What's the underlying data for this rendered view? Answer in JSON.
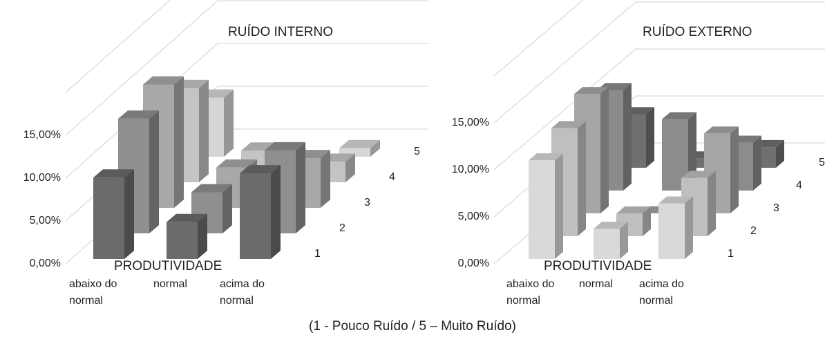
{
  "chart_data": [
    {
      "type": "bar3d",
      "title": "RUÍDO INTERNO",
      "x_label": "PRODUTIVIDADE",
      "categories": [
        "abaixo do normal",
        "normal",
        "acima do normal"
      ],
      "series": [
        {
          "name": "1",
          "color": "#6b6b6b",
          "values": [
            9.5,
            4.3,
            10.0
          ]
        },
        {
          "name": "2",
          "color": "#8f8f8f",
          "values": [
            13.4,
            4.8,
            9.7
          ]
        },
        {
          "name": "3",
          "color": "#a8a8a8",
          "values": [
            14.4,
            4.7,
            5.8
          ]
        },
        {
          "name": "4",
          "color": "#c4c4c4",
          "values": [
            11.0,
            3.7,
            2.4
          ]
        },
        {
          "name": "5",
          "color": "#d6d6d6",
          "values": [
            6.9,
            0,
            1.0
          ]
        }
      ],
      "ylim": [
        0,
        20
      ],
      "yticks": [
        {
          "value": 0,
          "label": "0,00%"
        },
        {
          "value": 5,
          "label": "5,00%"
        },
        {
          "value": 10,
          "label": "10,00%"
        },
        {
          "value": 15,
          "label": "15,00%"
        }
      ],
      "grid": true
    },
    {
      "type": "bar3d",
      "title": "RUÍDO EXTERNO",
      "x_label": "PRODUTIVIDADE",
      "categories": [
        "abaixo do normal",
        "normal",
        "acima do normal"
      ],
      "series": [
        {
          "name": "1",
          "color": "#d9d9d9",
          "values": [
            10.5,
            3.2,
            5.9
          ]
        },
        {
          "name": "2",
          "color": "#bfbfbf",
          "values": [
            11.5,
            2.4,
            6.2
          ]
        },
        {
          "name": "3",
          "color": "#a6a6a6",
          "values": [
            12.7,
            0,
            8.5
          ]
        },
        {
          "name": "4",
          "color": "#8c8c8c",
          "values": [
            10.7,
            7.6,
            5.1
          ]
        },
        {
          "name": "5",
          "color": "#707070",
          "values": [
            5.7,
            1.0,
            2.2
          ]
        }
      ],
      "ylim": [
        0,
        20
      ],
      "yticks": [
        {
          "value": 0,
          "label": "0,00%"
        },
        {
          "value": 5,
          "label": "5,00%"
        },
        {
          "value": 10,
          "label": "10,00%"
        },
        {
          "value": 15,
          "label": "15,00%"
        }
      ],
      "grid": true
    }
  ],
  "caption": "(1 - Pouco  Ruído / 5 – Muito Ruído)"
}
